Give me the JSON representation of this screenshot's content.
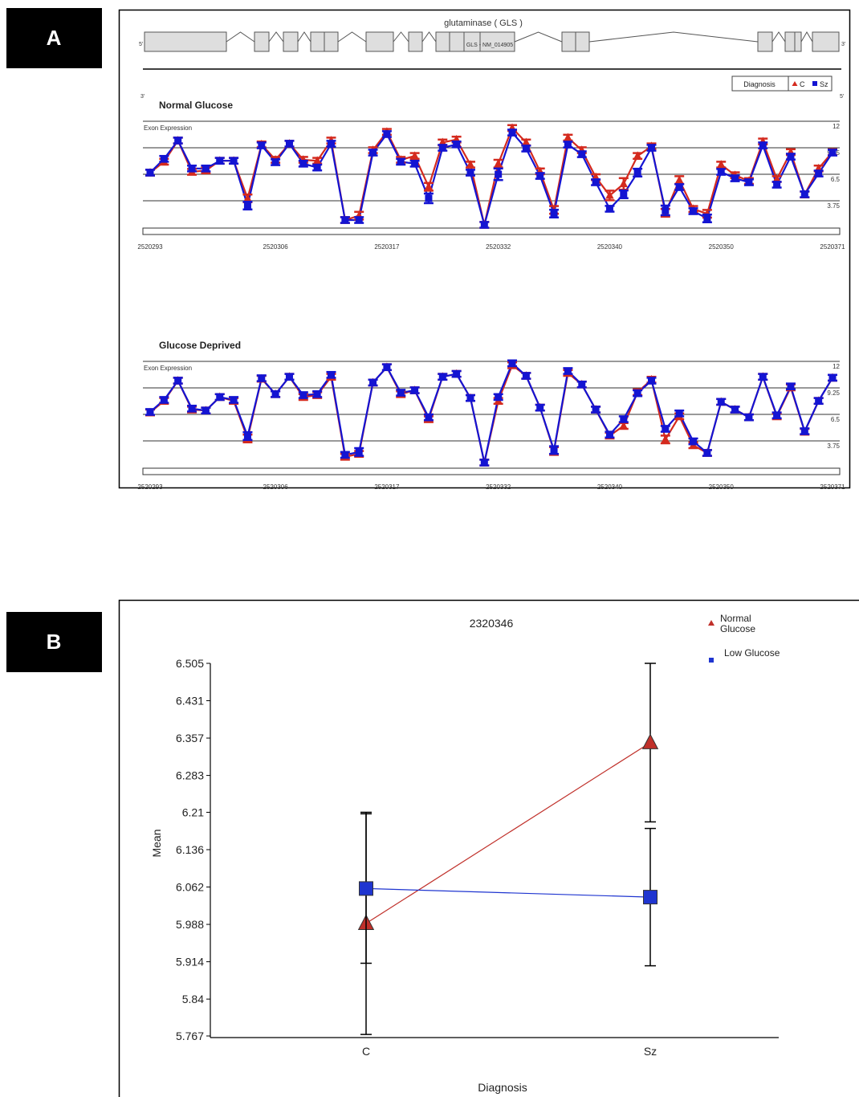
{
  "panel_labels": [
    "A",
    "B"
  ],
  "gene": {
    "name": "glutaminase ( GLS )",
    "transcript": "GLS - NM_014905",
    "upper_left": "5'",
    "upper_right": "3'",
    "lower_left": "3'",
    "lower_right": "5'"
  },
  "chart_data": [
    {
      "type": "line",
      "title": "Normal Glucose",
      "ylabel": "Exon Expression",
      "legend_title": "Diagnosis",
      "categories": [
        "2520293",
        null,
        null,
        null,
        null,
        null,
        null,
        null,
        null,
        "2520306",
        null,
        null,
        null,
        null,
        null,
        null,
        null,
        "2520317",
        null,
        null,
        null,
        null,
        null,
        null,
        null,
        "2520332",
        null,
        null,
        null,
        null,
        null,
        null,
        null,
        "2520340",
        null,
        null,
        null,
        null,
        null,
        null,
        null,
        "2520350",
        null,
        null,
        null,
        null,
        null,
        null,
        null,
        "2520371"
      ],
      "ylim": [
        1,
        12
      ],
      "yticks": [
        3.75,
        6.5,
        9.25,
        12
      ],
      "grid": true,
      "ytick_side": "right",
      "series": [
        {
          "name": "C",
          "color": "#d42a1e",
          "marker": "triangle",
          "values": [
            6.67,
            7.8,
            10.0,
            6.75,
            6.9,
            7.9,
            7.9,
            4.0,
            9.6,
            8.0,
            9.67,
            8.0,
            7.9,
            10.0,
            1.75,
            2.2,
            9.0,
            10.9,
            8.0,
            8.4,
            5.2,
            9.8,
            10.1,
            7.5,
            1.25,
            7.6,
            11.3,
            9.8,
            6.8,
            2.8,
            10.3,
            9.0,
            6.2,
            4.3,
            5.5,
            8.4,
            9.4,
            2.5,
            5.9,
            2.9,
            2.4,
            7.5,
            6.4,
            5.8,
            9.9,
            6.0,
            8.8,
            4.4,
            7.1,
            8.8
          ],
          "errors": [
            0.3,
            0.3,
            0.3,
            0.3,
            0.3,
            0.3,
            0.3,
            0.4,
            0.3,
            0.3,
            0.3,
            0.3,
            0.3,
            0.3,
            0.3,
            0.4,
            0.3,
            0.3,
            0.3,
            0.3,
            0.4,
            0.3,
            0.3,
            0.3,
            0.3,
            0.4,
            0.3,
            0.3,
            0.3,
            0.4,
            0.3,
            0.3,
            0.3,
            0.5,
            0.6,
            0.3,
            0.3,
            0.4,
            0.4,
            0.3,
            0.4,
            0.3,
            0.3,
            0.3,
            0.3,
            0.3,
            0.3,
            0.3,
            0.3,
            0.3
          ]
        },
        {
          "name": "Sz",
          "color": "#1414d2",
          "marker": "square",
          "values": [
            6.67,
            8.1,
            10.0,
            7.1,
            7.1,
            7.9,
            7.9,
            3.25,
            9.5,
            7.75,
            9.67,
            7.6,
            7.2,
            9.67,
            1.75,
            1.75,
            8.75,
            10.67,
            7.8,
            7.6,
            4.0,
            9.25,
            9.6,
            6.67,
            1.25,
            6.5,
            10.83,
            9.17,
            6.33,
            2.42,
            9.58,
            8.58,
            5.67,
            2.92,
            4.42,
            6.67,
            9.25,
            2.75,
            5.17,
            2.67,
            1.92,
            6.75,
            6.08,
            5.67,
            9.5,
            5.42,
            8.33,
            4.42,
            6.58,
            8.75
          ],
          "errors": [
            0.3,
            0.3,
            0.3,
            0.3,
            0.3,
            0.3,
            0.3,
            0.4,
            0.3,
            0.3,
            0.3,
            0.3,
            0.3,
            0.3,
            0.3,
            0.3,
            0.3,
            0.3,
            0.3,
            0.3,
            0.5,
            0.3,
            0.3,
            0.3,
            0.3,
            0.6,
            0.3,
            0.3,
            0.3,
            0.4,
            0.3,
            0.3,
            0.3,
            0.3,
            0.4,
            0.4,
            0.3,
            0.5,
            0.3,
            0.3,
            0.4,
            0.3,
            0.3,
            0.3,
            0.3,
            0.3,
            0.3,
            0.3,
            0.3,
            0.3
          ]
        }
      ]
    },
    {
      "type": "line",
      "title": "Glucose Deprived",
      "ylabel": "Exon Expression",
      "categories": [
        "2520293",
        null,
        null,
        null,
        null,
        null,
        null,
        null,
        null,
        "2520306",
        null,
        null,
        null,
        null,
        null,
        null,
        null,
        "2520317",
        null,
        null,
        null,
        null,
        null,
        null,
        null,
        "2520332",
        null,
        null,
        null,
        null,
        null,
        null,
        null,
        "2520340",
        null,
        null,
        null,
        null,
        null,
        null,
        null,
        "2520350",
        null,
        null,
        null,
        null,
        null,
        null,
        null,
        "2520371"
      ],
      "ylim": [
        1,
        12
      ],
      "yticks": [
        3.75,
        6.5,
        9.25,
        12
      ],
      "grid": true,
      "ytick_side": "right",
      "series": [
        {
          "name": "C",
          "color": "#d42a1e",
          "marker": "triangle",
          "values": [
            6.7,
            7.9,
            10.0,
            7.0,
            6.9,
            8.3,
            7.9,
            4.0,
            10.2,
            8.6,
            10.4,
            8.3,
            8.5,
            10.4,
            2.1,
            2.4,
            9.8,
            11.4,
            8.6,
            9.0,
            6.0,
            10.4,
            10.7,
            8.2,
            1.5,
            7.9,
            11.6,
            10.5,
            7.2,
            2.7,
            10.8,
            9.6,
            7.0,
            4.3,
            5.3,
            8.8,
            10.1,
            3.9,
            6.3,
            3.3,
            2.5,
            7.8,
            7.0,
            6.2,
            10.4,
            6.3,
            9.3,
            4.7,
            7.9,
            10.3
          ],
          "errors": [
            0.3,
            0.3,
            0.3,
            0.3,
            0.3,
            0.3,
            0.3,
            0.4,
            0.3,
            0.3,
            0.3,
            0.3,
            0.3,
            0.3,
            0.3,
            0.3,
            0.3,
            0.3,
            0.3,
            0.3,
            0.3,
            0.3,
            0.3,
            0.3,
            0.3,
            0.3,
            0.3,
            0.3,
            0.3,
            0.4,
            0.3,
            0.3,
            0.3,
            0.3,
            0.3,
            0.3,
            0.3,
            0.4,
            0.3,
            0.3,
            0.3,
            0.3,
            0.3,
            0.3,
            0.3,
            0.3,
            0.3,
            0.3,
            0.3,
            0.3
          ]
        },
        {
          "name": "Sz",
          "color": "#1414d2",
          "marker": "square",
          "values": [
            6.75,
            8.0,
            10.0,
            7.1,
            6.9,
            8.3,
            8.0,
            4.25,
            10.25,
            8.6,
            10.4,
            8.5,
            8.6,
            10.6,
            2.3,
            2.6,
            9.8,
            11.4,
            8.75,
            9.0,
            6.2,
            10.4,
            10.7,
            8.2,
            1.5,
            8.3,
            11.8,
            10.5,
            7.2,
            2.8,
            11.0,
            9.6,
            7.0,
            4.4,
            6.0,
            8.7,
            10.0,
            5.0,
            6.6,
            3.7,
            2.5,
            7.8,
            7.0,
            6.2,
            10.4,
            6.4,
            9.4,
            4.75,
            7.9,
            10.3
          ],
          "errors": [
            0.3,
            0.3,
            0.3,
            0.3,
            0.3,
            0.3,
            0.3,
            0.4,
            0.3,
            0.3,
            0.3,
            0.3,
            0.3,
            0.3,
            0.3,
            0.4,
            0.3,
            0.3,
            0.3,
            0.3,
            0.3,
            0.3,
            0.3,
            0.3,
            0.3,
            0.3,
            0.3,
            0.3,
            0.3,
            0.4,
            0.3,
            0.3,
            0.3,
            0.3,
            0.3,
            0.3,
            0.3,
            0.3,
            0.3,
            0.3,
            0.3,
            0.3,
            0.3,
            0.3,
            0.3,
            0.3,
            0.3,
            0.3,
            0.3,
            0.3
          ]
        }
      ]
    },
    {
      "type": "line",
      "title": "2320346",
      "xlabel": "Diagnosis",
      "ylabel": "Mean",
      "categories": [
        "C",
        "Sz"
      ],
      "ylim": [
        5.767,
        6.505
      ],
      "yticks": [
        5.767,
        5.84,
        5.914,
        5.988,
        6.062,
        6.136,
        6.21,
        6.283,
        6.357,
        6.431,
        6.505
      ],
      "grid": false,
      "ytick_side": "left",
      "series": [
        {
          "name": "Normal Glucose",
          "color": "#c0302a",
          "marker": "triangle",
          "values": [
            5.99,
            6.348
          ],
          "errors": [
            0.22,
            0.157
          ]
        },
        {
          "name": "Low Glucose",
          "color": "#1f35d0",
          "marker": "square",
          "values": [
            6.059,
            6.042
          ],
          "errors": [
            0.148,
            0.136
          ]
        }
      ]
    }
  ]
}
